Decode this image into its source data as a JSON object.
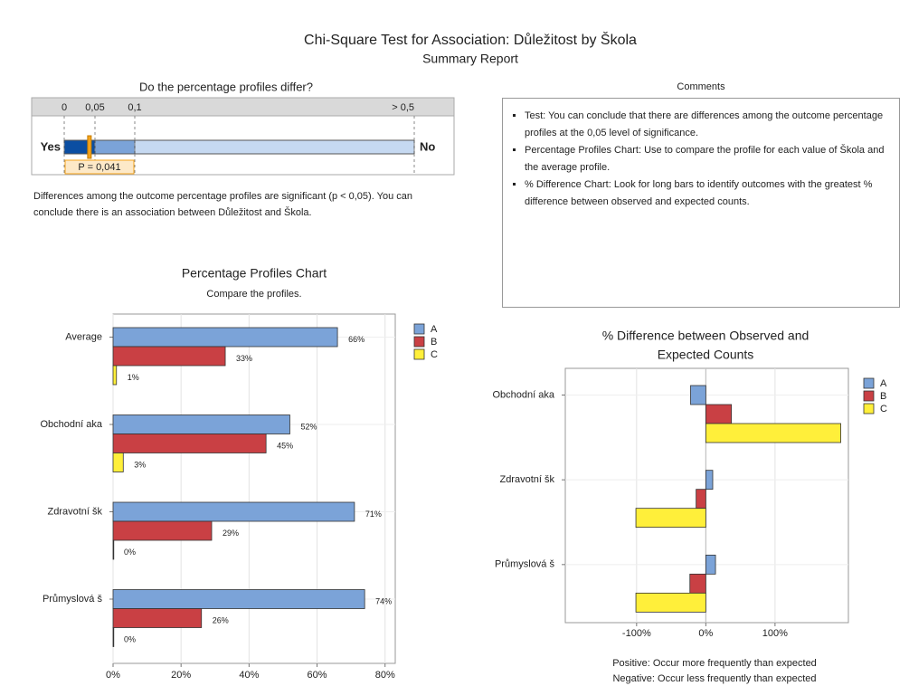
{
  "header": {
    "title": "Chi-Square Test for Association: Důležitost by Škola",
    "subtitle": "Summary Report"
  },
  "gauge": {
    "title": "Do the percentage profiles differ?",
    "yes_label": "Yes",
    "no_label": "No",
    "ticks": [
      {
        "value": 0,
        "label": "0"
      },
      {
        "value": 0.05,
        "label": "0,05"
      },
      {
        "value": 0.1,
        "label": "0,1"
      },
      {
        "value": 0.5,
        "label": "> 0,5"
      }
    ],
    "p_value": {
      "value": 0.041,
      "label": "P = 0,041"
    },
    "conclusion": "Differences among the outcome percentage profiles are significant (p < 0,05). You can conclude there is an association between Důležitost and Škola."
  },
  "comments": {
    "title": "Comments",
    "items": [
      "Test: You can conclude that there are differences among the outcome percentage profiles at the 0,05 level of significance.",
      "Percentage Profiles Chart: Use to compare the profile for each value of Škola and the average profile.",
      "% Difference Chart: Look for long bars to identify outcomes with the greatest % difference between observed and expected counts."
    ]
  },
  "chart_data": [
    {
      "type": "bar",
      "orientation": "horizontal",
      "title": "Percentage Profiles Chart",
      "subtitle": "Compare the profiles.",
      "categories": [
        "Average",
        "Obchodní aka",
        "Zdravotní šk",
        "Průmyslová š"
      ],
      "series": [
        {
          "name": "A",
          "color": "#7ba3d8",
          "values": [
            66,
            52,
            71,
            74
          ],
          "value_labels": [
            "66%",
            "52%",
            "71%",
            "74%"
          ]
        },
        {
          "name": "B",
          "color": "#c94044",
          "values": [
            33,
            45,
            29,
            26
          ],
          "value_labels": [
            "33%",
            "45%",
            "29%",
            "26%"
          ]
        },
        {
          "name": "C",
          "color": "#ffef3a",
          "values": [
            1,
            3,
            0,
            0
          ],
          "value_labels": [
            "1%",
            "3%",
            "0%",
            "0%"
          ]
        }
      ],
      "xlim": [
        0,
        83
      ],
      "xticks": [
        {
          "value": 0,
          "label": "0%"
        },
        {
          "value": 20,
          "label": "20%"
        },
        {
          "value": 40,
          "label": "40%"
        },
        {
          "value": 60,
          "label": "60%"
        },
        {
          "value": 80,
          "label": "80%"
        }
      ],
      "grid": true,
      "legend": "right"
    },
    {
      "type": "bar",
      "orientation": "horizontal",
      "title": [
        "% Difference between Observed and",
        "Expected Counts"
      ],
      "categories": [
        "Obchodní aka",
        "Zdravotní šk",
        "Průmyslová š"
      ],
      "series": [
        {
          "name": "A",
          "color": "#7ba3d8",
          "values": [
            -22,
            10,
            14
          ]
        },
        {
          "name": "B",
          "color": "#c94044",
          "values": [
            37,
            -14,
            -23
          ]
        },
        {
          "name": "C",
          "color": "#ffef3a",
          "values": [
            195,
            -101,
            -101
          ]
        }
      ],
      "xlim": [
        -203,
        206
      ],
      "xticks": [
        {
          "value": -100,
          "label": "-100%"
        },
        {
          "value": 0,
          "label": "0%"
        },
        {
          "value": 100,
          "label": "100%"
        }
      ],
      "grid": true,
      "legend": "right",
      "notes": [
        "Positive: Occur more frequently than expected",
        "Negative: Occur less frequently than expected"
      ]
    }
  ]
}
